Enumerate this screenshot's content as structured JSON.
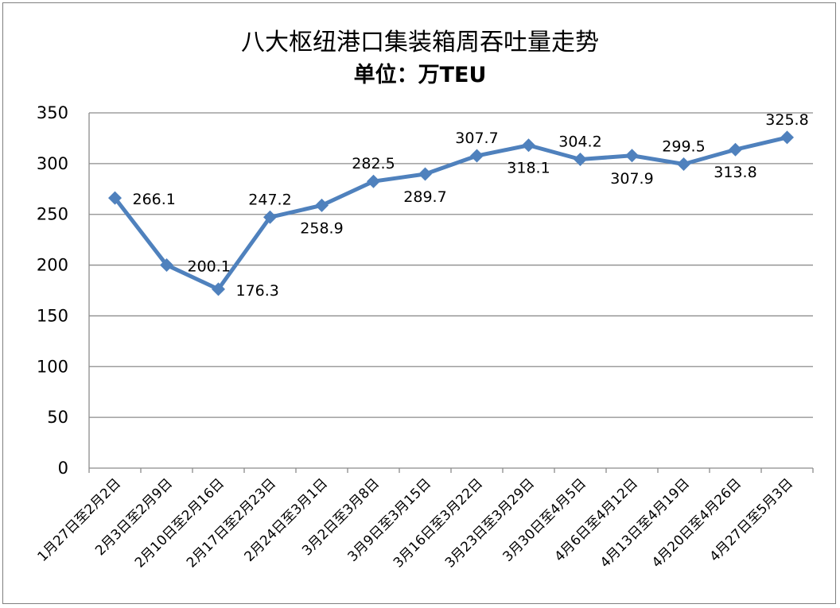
{
  "chart_data": {
    "type": "line",
    "title": "八大枢纽港口集装箱周吞吐量走势",
    "subtitle": "单位：万TEU",
    "categories": [
      "1月27日至2月2日",
      "2月3日至2月9日",
      "2月10日至2月16日",
      "2月17日至2月23日",
      "2月24日至3月1日",
      "3月2日至3月8日",
      "3月9日至3月15日",
      "3月16日至3月22日",
      "3月23日至3月29日",
      "3月30日至4月5日",
      "4月6日至4月12日",
      "4月13日至4月19日",
      "4月20日至4月26日",
      "4月27日至5月3日"
    ],
    "values": [
      266.1,
      200.1,
      176.3,
      247.2,
      258.9,
      282.5,
      289.7,
      307.7,
      318.1,
      304.2,
      307.9,
      299.5,
      313.8,
      325.8
    ],
    "value_labels": [
      "266.1",
      "200.1",
      "176.3",
      "247.2",
      "258.9",
      "282.5",
      "289.7",
      "307.7",
      "318.1",
      "304.2",
      "307.9",
      "299.5",
      "313.8",
      "325.8"
    ],
    "label_positions": [
      "right",
      "left",
      "right",
      "above",
      "below",
      "above",
      "below",
      "above",
      "below",
      "above",
      "below",
      "above",
      "below",
      "above"
    ],
    "ylim": [
      0,
      350
    ],
    "yticks": [
      0,
      50,
      100,
      150,
      200,
      250,
      300,
      350
    ],
    "grid": true,
    "legend": "none",
    "line_color": "#4f81bd"
  }
}
